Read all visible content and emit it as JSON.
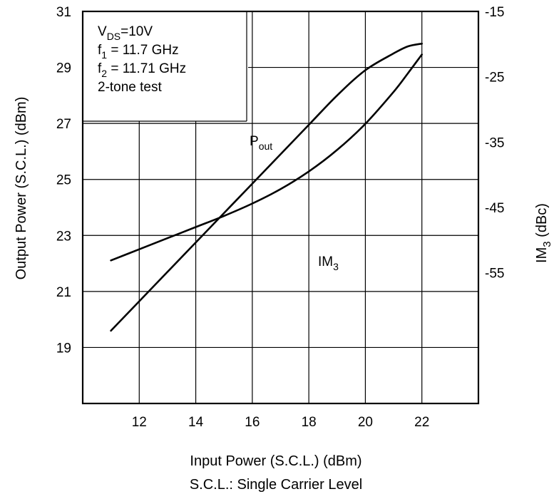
{
  "chart_data": {
    "type": "line",
    "x_axis": {
      "label": "Input Power (S.C.L.) (dBm)",
      "note": "S.C.L.: Single Carrier Level",
      "range": [
        10,
        24
      ],
      "ticks": [
        12,
        14,
        16,
        18,
        20,
        22
      ]
    },
    "y_axis_left": {
      "label": "Output Power (S.C.L.) (dBm)",
      "range": [
        17,
        31
      ],
      "ticks": [
        19,
        21,
        23,
        25,
        27,
        29,
        31
      ]
    },
    "y_axis_right": {
      "label_main": "IM",
      "label_sub": "3",
      "label_rest": " (dBc)",
      "range": [
        -75,
        -15
      ],
      "ticks": [
        -15,
        -25,
        -35,
        -45,
        -55
      ]
    },
    "conditions": [
      {
        "main": "V",
        "sub": "DS",
        "rest": "=10V"
      },
      {
        "main": "f",
        "sub": "1",
        "rest": " = 11.7 GHz"
      },
      {
        "main": "f",
        "sub": "2",
        "rest": " = 11.71 GHz"
      },
      {
        "main": "2-tone test",
        "sub": "",
        "rest": ""
      }
    ],
    "grid": true,
    "series": [
      {
        "name_main": "P",
        "name_sub": "out",
        "axis": "left",
        "x": [
          11,
          12,
          13,
          14,
          15,
          16,
          17,
          18,
          19,
          20,
          21,
          21.5,
          22
        ],
        "y": [
          19.6,
          20.65,
          21.7,
          22.75,
          23.8,
          24.85,
          25.9,
          26.95,
          28.0,
          28.9,
          29.5,
          29.75,
          29.85
        ]
      },
      {
        "name_main": "IM",
        "name_sub": "3",
        "axis": "right",
        "x": [
          11,
          12,
          13,
          14,
          15,
          16,
          17,
          18,
          19,
          20,
          21,
          21.5,
          22
        ],
        "y": [
          -53.1,
          -51.4,
          -49.7,
          -48.0,
          -46.3,
          -44.4,
          -42.2,
          -39.5,
          -36.2,
          -32.2,
          -27.3,
          -24.5,
          -21.6
        ]
      }
    ]
  }
}
